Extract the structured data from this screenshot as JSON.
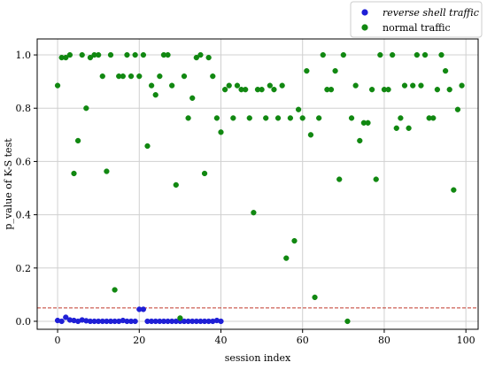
{
  "chart_data": {
    "type": "scatter",
    "title": "",
    "xlabel": "session index",
    "ylabel": "p_value of K-S test",
    "xlim": [
      -5,
      103
    ],
    "ylim": [
      -0.03,
      1.06
    ],
    "xticks": [
      0,
      20,
      40,
      60,
      80,
      100
    ],
    "yticks": [
      0.0,
      0.2,
      0.4,
      0.6,
      0.8,
      1.0
    ],
    "ytick_labels": [
      "0.0",
      "0.2",
      "0.4",
      "0.6",
      "0.8",
      "1.0"
    ],
    "grid": true,
    "legend_position": "top-right, outside plot",
    "threshold_line": {
      "y": 0.05,
      "color": "#c0392b",
      "style": "dashed"
    },
    "series": [
      {
        "name": "reverse shell traffic",
        "color": "#1f1fd6",
        "points": [
          [
            0,
            0.003
          ],
          [
            1,
            0.0
          ],
          [
            2,
            0.015
          ],
          [
            3,
            0.005
          ],
          [
            4,
            0.003
          ],
          [
            5,
            0.0
          ],
          [
            6,
            0.005
          ],
          [
            7,
            0.002
          ],
          [
            8,
            0.0
          ],
          [
            9,
            0.0
          ],
          [
            10,
            0.0
          ],
          [
            11,
            0.0
          ],
          [
            12,
            0.0
          ],
          [
            13,
            0.0
          ],
          [
            14,
            0.0
          ],
          [
            15,
            0.0
          ],
          [
            16,
            0.003
          ],
          [
            17,
            0.0
          ],
          [
            18,
            0.0
          ],
          [
            19,
            0.0
          ],
          [
            20,
            0.045
          ],
          [
            21,
            0.045
          ],
          [
            22,
            0.0
          ],
          [
            23,
            0.0
          ],
          [
            24,
            0.0
          ],
          [
            25,
            0.0
          ],
          [
            26,
            0.0
          ],
          [
            27,
            0.0
          ],
          [
            28,
            0.0
          ],
          [
            29,
            0.0
          ],
          [
            30,
            0.0
          ],
          [
            31,
            0.0
          ],
          [
            32,
            0.0
          ],
          [
            33,
            0.0
          ],
          [
            34,
            0.0
          ],
          [
            35,
            0.0
          ],
          [
            36,
            0.0
          ],
          [
            37,
            0.0
          ],
          [
            38,
            0.0
          ],
          [
            39,
            0.003
          ],
          [
            40,
            0.0
          ]
        ]
      },
      {
        "name": "normal traffic",
        "color": "#118811",
        "points": [
          [
            0,
            0.885
          ],
          [
            1,
            0.99
          ],
          [
            2,
            0.99
          ],
          [
            3,
            1.0
          ],
          [
            4,
            0.555
          ],
          [
            5,
            0.678
          ],
          [
            6,
            1.0
          ],
          [
            7,
            0.8
          ],
          [
            8,
            0.99
          ],
          [
            9,
            1.0
          ],
          [
            10,
            1.0
          ],
          [
            11,
            0.92
          ],
          [
            12,
            0.563
          ],
          [
            13,
            1.0
          ],
          [
            14,
            0.118
          ],
          [
            15,
            0.92
          ],
          [
            16,
            0.92
          ],
          [
            17,
            1.0
          ],
          [
            18,
            0.92
          ],
          [
            19,
            1.0
          ],
          [
            20,
            0.92
          ],
          [
            21,
            1.0
          ],
          [
            22,
            0.658
          ],
          [
            23,
            0.885
          ],
          [
            24,
            0.85
          ],
          [
            25,
            0.92
          ],
          [
            26,
            1.0
          ],
          [
            27,
            1.0
          ],
          [
            28,
            0.885
          ],
          [
            29,
            0.512
          ],
          [
            30,
            0.012
          ],
          [
            31,
            0.92
          ],
          [
            32,
            0.763
          ],
          [
            33,
            0.838
          ],
          [
            34,
            0.99
          ],
          [
            35,
            1.0
          ],
          [
            36,
            0.555
          ],
          [
            37,
            0.99
          ],
          [
            38,
            0.92
          ],
          [
            39,
            0.763
          ],
          [
            40,
            0.71
          ],
          [
            41,
            0.87
          ],
          [
            42,
            0.885
          ],
          [
            43,
            0.763
          ],
          [
            44,
            0.885
          ],
          [
            45,
            0.87
          ],
          [
            46,
            0.87
          ],
          [
            47,
            0.763
          ],
          [
            48,
            0.408
          ],
          [
            49,
            0.87
          ],
          [
            50,
            0.87
          ],
          [
            51,
            0.763
          ],
          [
            52,
            0.885
          ],
          [
            53,
            0.87
          ],
          [
            54,
            0.763
          ],
          [
            55,
            0.885
          ],
          [
            56,
            0.237
          ],
          [
            57,
            0.763
          ],
          [
            58,
            0.302
          ],
          [
            59,
            0.795
          ],
          [
            60,
            0.763
          ],
          [
            61,
            0.94
          ],
          [
            62,
            0.7
          ],
          [
            63,
            0.09
          ],
          [
            64,
            0.763
          ],
          [
            65,
            1.0
          ],
          [
            66,
            0.87
          ],
          [
            67,
            0.87
          ],
          [
            68,
            0.94
          ],
          [
            69,
            0.533
          ],
          [
            70,
            1.0
          ],
          [
            71,
            0.0
          ],
          [
            72,
            0.763
          ],
          [
            73,
            0.885
          ],
          [
            74,
            0.678
          ],
          [
            75,
            0.745
          ],
          [
            76,
            0.745
          ],
          [
            77,
            0.87
          ],
          [
            78,
            0.533
          ],
          [
            79,
            1.0
          ],
          [
            80,
            0.87
          ],
          [
            81,
            0.87
          ],
          [
            82,
            1.0
          ],
          [
            83,
            0.725
          ],
          [
            84,
            0.763
          ],
          [
            85,
            0.885
          ],
          [
            86,
            0.725
          ],
          [
            87,
            0.885
          ],
          [
            88,
            1.0
          ],
          [
            89,
            0.885
          ],
          [
            90,
            1.0
          ],
          [
            91,
            0.763
          ],
          [
            92,
            0.763
          ],
          [
            93,
            0.87
          ],
          [
            94,
            1.0
          ],
          [
            95,
            0.94
          ],
          [
            96,
            0.87
          ],
          [
            97,
            0.493
          ],
          [
            98,
            0.795
          ],
          [
            99,
            0.885
          ]
        ]
      }
    ]
  }
}
